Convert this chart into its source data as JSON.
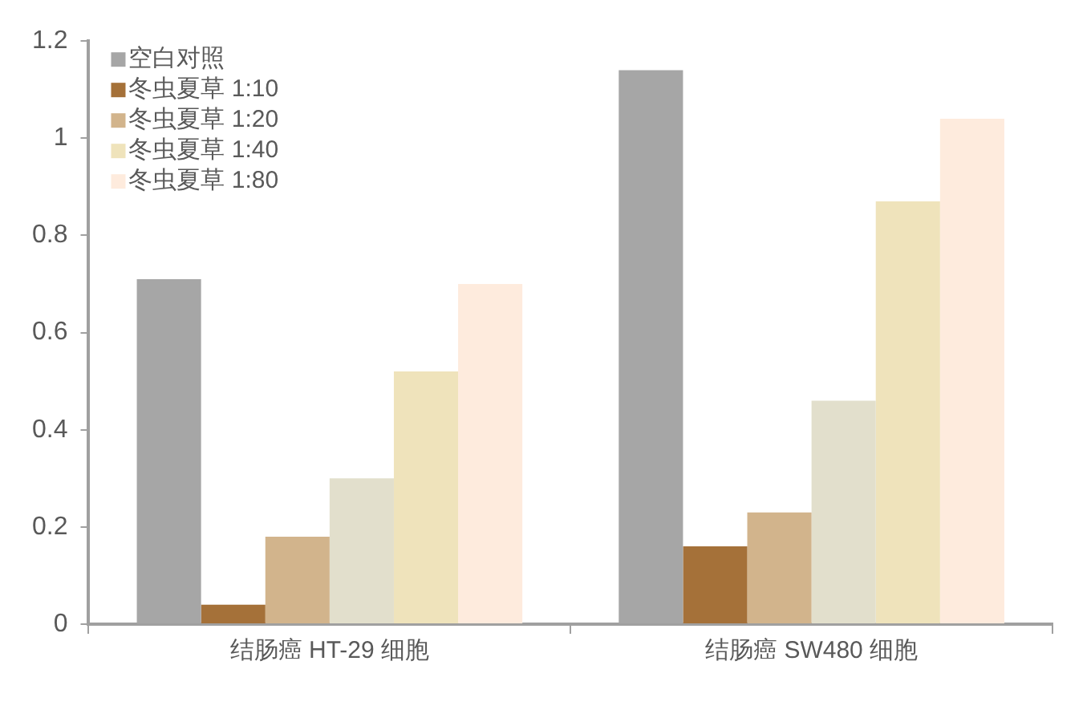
{
  "chart_data": {
    "type": "bar",
    "categories": [
      "结肠癌 HT-29 细胞",
      "结肠癌 SW480 细胞"
    ],
    "series": [
      {
        "name": "空白对照",
        "color": "#a6a6a6",
        "values": [
          0.71,
          1.14
        ]
      },
      {
        "name": "冬虫夏草 1:10",
        "color": "#a57139",
        "values": [
          0.04,
          0.16
        ]
      },
      {
        "name": "冬虫夏草 1:20",
        "color": "#d2b48c",
        "values": [
          0.18,
          0.23
        ]
      },
      {
        "color": "#e2dfcc",
        "values": [
          0.3,
          0.46
        ]
      },
      {
        "name": "冬虫夏草 1:40",
        "color": "#efe3bb",
        "values": [
          0.52,
          0.87
        ]
      },
      {
        "name": "冬虫夏草 1:80",
        "color": "#feebdd",
        "values": [
          0.7,
          1.04
        ]
      }
    ],
    "ylim": [
      0,
      1.2
    ],
    "yticks": [
      0,
      0.2,
      0.4,
      0.6,
      0.8,
      1,
      1.2
    ],
    "grid": false,
    "legend": "top left"
  }
}
